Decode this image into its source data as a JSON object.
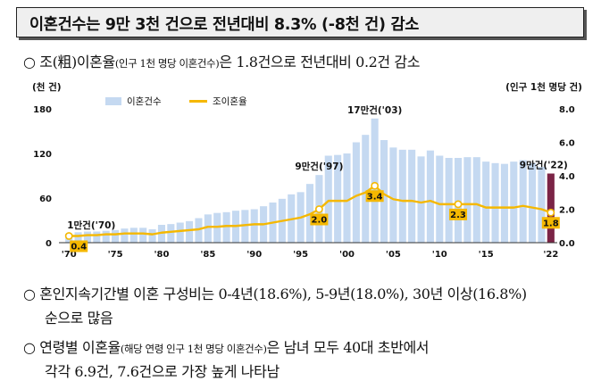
{
  "title": "이혼건수는 9만 3천 건으로 전년대비 8.3% (-8천 건) 감소",
  "bullet1": {
    "mark": "○",
    "pre": "조(粗)이혼율",
    "note": "(인구 1천 명당 이혼건수)",
    "post": "은 1.8건으로 전년대비 0.2건 감소"
  },
  "bullet2": {
    "mark": "○",
    "line1": "혼인지속기간별 이혼 구성비는 0-4년(18.6%), 5-9년(18.0%), 30년 이상(16.8%)",
    "line2": "순으로 많음"
  },
  "bullet3": {
    "mark": "○",
    "pre": "연령별 이혼율",
    "note": "(해당 연령 인구 1천 명당 이혼건수)",
    "post": "은 남녀 모두 40대 초반에서",
    "line2": "각각 6.9건, 7.6건으로 가장 높게 나타남"
  },
  "colors": {
    "bar": "#c5d9f1",
    "bar_last": "#7b2446",
    "line": "#f5b800",
    "label_bg": "#f5b800"
  },
  "chart_data": {
    "type": "bar+line",
    "left_axis_label": "(천 건)",
    "right_axis_label": "(인구 1천 명당 건)",
    "left_ylim": [
      0,
      180
    ],
    "left_ticks": [
      0,
      60,
      120,
      180
    ],
    "right_ylim": [
      0,
      8
    ],
    "right_ticks": [
      "0.0",
      "2.0",
      "4.0",
      "6.0",
      "8.0"
    ],
    "x_tick_labels": [
      "'70",
      "'75",
      "'80",
      "'85",
      "'90",
      "'95",
      "'00",
      "'05",
      "'10",
      "'15",
      "'22"
    ],
    "x_tick_years": [
      1970,
      1975,
      1980,
      1985,
      1990,
      1995,
      2000,
      2005,
      2010,
      2015,
      2022
    ],
    "years": [
      1970,
      1971,
      1972,
      1973,
      1974,
      1975,
      1976,
      1977,
      1978,
      1979,
      1980,
      1981,
      1982,
      1983,
      1984,
      1985,
      1986,
      1987,
      1988,
      1989,
      1990,
      1991,
      1992,
      1993,
      1994,
      1995,
      1996,
      1997,
      1998,
      1999,
      2000,
      2001,
      2002,
      2003,
      2004,
      2005,
      2006,
      2007,
      2008,
      2009,
      2010,
      2011,
      2012,
      2013,
      2014,
      2015,
      2016,
      2017,
      2018,
      2019,
      2020,
      2021,
      2022
    ],
    "series": [
      {
        "name": "이혼건수",
        "type": "bar",
        "axis": "left",
        "values": [
          12,
          14,
          15,
          15,
          16,
          17,
          19,
          20,
          20,
          18,
          24,
          25,
          27,
          29,
          33,
          38,
          40,
          41,
          43,
          44,
          45,
          49,
          54,
          59,
          65,
          68,
          79,
          91,
          117,
          118,
          120,
          135,
          145,
          167,
          138,
          128,
          125,
          125,
          116,
          124,
          117,
          114,
          114,
          115,
          115,
          109,
          107,
          106,
          109,
          111,
          107,
          102,
          93
        ]
      },
      {
        "name": "조이혼율",
        "type": "line",
        "axis": "right",
        "values": [
          0.4,
          0.4,
          0.45,
          0.45,
          0.5,
          0.5,
          0.55,
          0.55,
          0.55,
          0.5,
          0.6,
          0.65,
          0.7,
          0.75,
          0.8,
          0.95,
          0.95,
          1.0,
          1.0,
          1.05,
          1.1,
          1.1,
          1.2,
          1.3,
          1.4,
          1.5,
          1.7,
          2.0,
          2.5,
          2.5,
          2.5,
          2.8,
          3.0,
          3.4,
          2.9,
          2.6,
          2.5,
          2.5,
          2.4,
          2.5,
          2.3,
          2.3,
          2.3,
          2.3,
          2.3,
          2.1,
          2.1,
          2.1,
          2.1,
          2.2,
          2.1,
          2.0,
          1.8
        ]
      }
    ],
    "bar_annotations": [
      {
        "year": 1970,
        "text": "1만건('70)"
      },
      {
        "year": 1997,
        "text": "9만건('97)"
      },
      {
        "year": 2003,
        "text": "17만건('03)"
      },
      {
        "year": 2022,
        "text": "9만건('22)"
      }
    ],
    "line_labels": [
      {
        "year": 1970,
        "text": "0.4"
      },
      {
        "year": 1997,
        "text": "2.0"
      },
      {
        "year": 2003,
        "text": "3.4"
      },
      {
        "year": 2012,
        "text": "2.3"
      },
      {
        "year": 2022,
        "text": "1.8"
      }
    ]
  }
}
